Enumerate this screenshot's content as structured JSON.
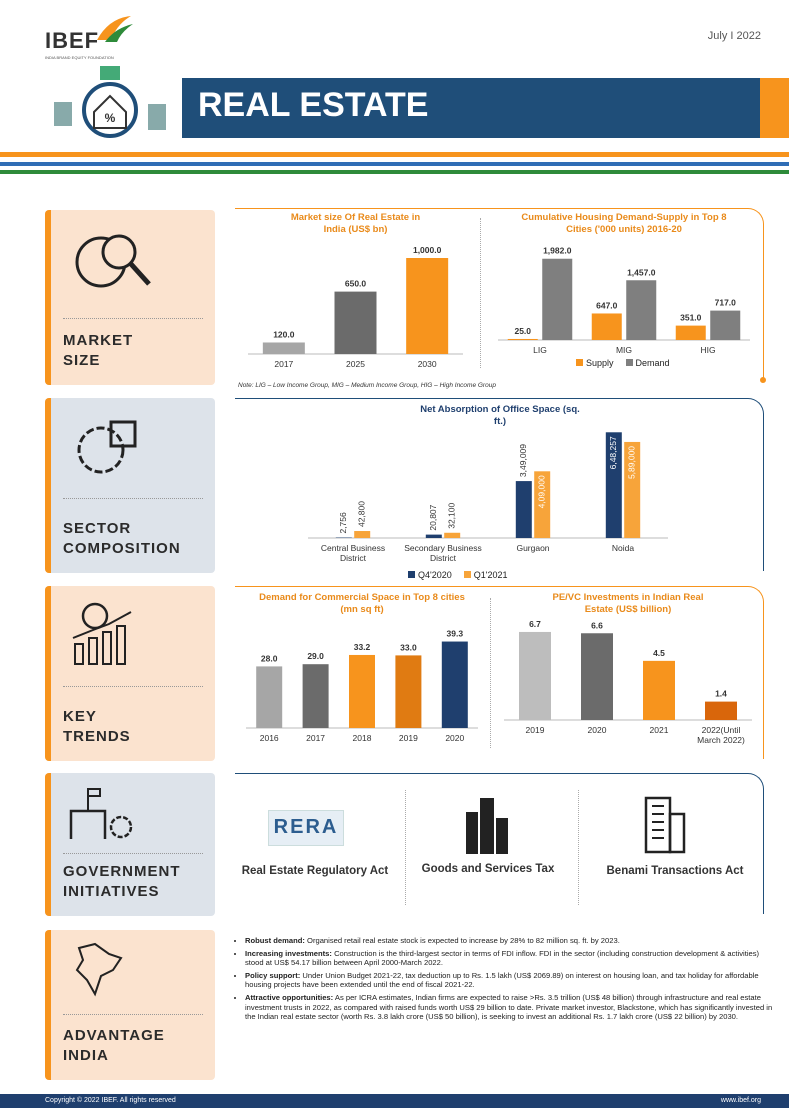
{
  "header": {
    "logo": "IBEF",
    "logo_subtitle": "INDIA BRAND EQUITY FOUNDATION",
    "date": "July I 2022",
    "title": "REAL ESTATE"
  },
  "sections": [
    {
      "label": [
        "MARKET",
        "SIZE"
      ]
    },
    {
      "label": [
        "SECTOR",
        "COMPOSITION"
      ]
    },
    {
      "label": [
        "KEY",
        "TRENDS"
      ]
    },
    {
      "label": [
        "GOVERNMENT",
        "INITIATIVES"
      ]
    },
    {
      "label": [
        "ADVANTAGE",
        "INDIA"
      ]
    }
  ],
  "chart_data": [
    {
      "type": "bar",
      "title": "Market size Of Real Estate in India (US$ bn)",
      "categories": [
        "2017",
        "2025",
        "2030"
      ],
      "values": [
        120,
        650,
        1000
      ],
      "value_labels": [
        "120.0",
        "650.0",
        "1,000.0"
      ],
      "colors": [
        "#a6a6a6",
        "#6b6b6b",
        "#f7941d"
      ],
      "ylim": [
        0,
        1000
      ]
    },
    {
      "type": "bar",
      "title": "Cumulative Housing Demand-Supply in Top 8 Cities ('000 units) 2016-20",
      "categories": [
        "LIG",
        "MIG",
        "HIG"
      ],
      "series": [
        {
          "name": "Supply",
          "color": "#f7941d",
          "values": [
            25,
            647,
            351
          ],
          "value_labels": [
            "25.0",
            "647.0",
            "351.0"
          ]
        },
        {
          "name": "Demand",
          "color": "#7f7f7f",
          "values": [
            1982,
            1457,
            717
          ],
          "value_labels": [
            "1,982.0",
            "1,457.0",
            "717.0"
          ]
        }
      ],
      "ylim": [
        0,
        2000
      ]
    },
    {
      "type": "bar",
      "title": "Net Absorption of Office Space (sq. ft.)",
      "categories": [
        "Central Business District",
        "Secondary Business District",
        "Gurgaon",
        "Noida"
      ],
      "series": [
        {
          "name": "Q4'2020",
          "color": "#1f3f6e",
          "values": [
            2756,
            20807,
            349009,
            648257
          ],
          "value_labels": [
            "2,756",
            "20,807",
            "3,49,009",
            "6,48,257"
          ]
        },
        {
          "name": "Q1'2021",
          "color": "#f7a43a",
          "values": [
            42800,
            32100,
            409000,
            589000
          ],
          "value_labels": [
            "42,800",
            "32,100",
            "4,09,000",
            "5,89,000"
          ]
        }
      ],
      "ylim": [
        0,
        650000
      ]
    },
    {
      "type": "bar",
      "title": "Demand for Commercial Space in Top 8 cities (mn sq ft)",
      "categories": [
        "2016",
        "2017",
        "2018",
        "2019",
        "2020"
      ],
      "values": [
        28.0,
        29.0,
        33.2,
        33.0,
        39.3
      ],
      "value_labels": [
        "28.0",
        "29.0",
        "33.2",
        "33.0",
        "39.3"
      ],
      "colors": [
        "#a6a6a6",
        "#6b6b6b",
        "#f7941d",
        "#e07b12",
        "#1f3f6e"
      ],
      "ylim": [
        0,
        40
      ]
    },
    {
      "type": "bar",
      "title": "PE/VC Investments in Indian Real Estate (US$ billion)",
      "categories": [
        "2019",
        "2020",
        "2021",
        "2022(Until March 2022)"
      ],
      "values": [
        6.7,
        6.6,
        4.5,
        1.4
      ],
      "value_labels": [
        "6.7",
        "6.6",
        "4.5",
        "1.4"
      ],
      "colors": [
        "#bdbdbd",
        "#6b6b6b",
        "#f7941d",
        "#d9660b"
      ],
      "ylim": [
        0,
        7
      ]
    }
  ],
  "note": "Note: LIG – Low Income Group, MIG – Medium Income Group, HIG – High Income Group",
  "initiatives": [
    {
      "logo": "RERA",
      "label": "Real Estate Regulatory Act"
    },
    {
      "label": "Goods and Services Tax"
    },
    {
      "label": "Benami Transactions Act"
    }
  ],
  "bullets": [
    {
      "lead": "Robust demand:",
      "text": "Organised retail real estate stock is expected to increase by 28% to 82 million sq. ft. by 2023."
    },
    {
      "lead": "Increasing investments:",
      "text": "Construction is the third-largest sector in terms of FDI inflow. FDI in the sector (including construction development & activities) stood at US$ 54.17 billion between April 2000-March 2022."
    },
    {
      "lead": "Policy support:",
      "text": "Under Union Budget 2021-22, tax deduction up to Rs. 1.5 lakh (US$ 2069.89) on interest on housing loan, and tax holiday for affordable housing projects have been extended until the end of fiscal 2021-22."
    },
    {
      "lead": "Attractive opportunities:",
      "text": "As per ICRA estimates, Indian firms are expected to raise >Rs. 3.5 trillion (US$ 48 billion) through infrastructure and real estate investment trusts in 2022, as compared with raised funds worth US$ 29 billion to date. Private market investor, Blackstone, which has significantly invested in the Indian real estate sector (worth Rs. 3.8 lakh crore (US$ 50 billion), is seeking to invest an additional Rs. 1.7 lakh crore (US$ 22 billion) by 2030."
    }
  ],
  "footer": {
    "copyright": "Copyright © 2022 IBEF. All rights reserved",
    "url": "www.ibef.org"
  }
}
